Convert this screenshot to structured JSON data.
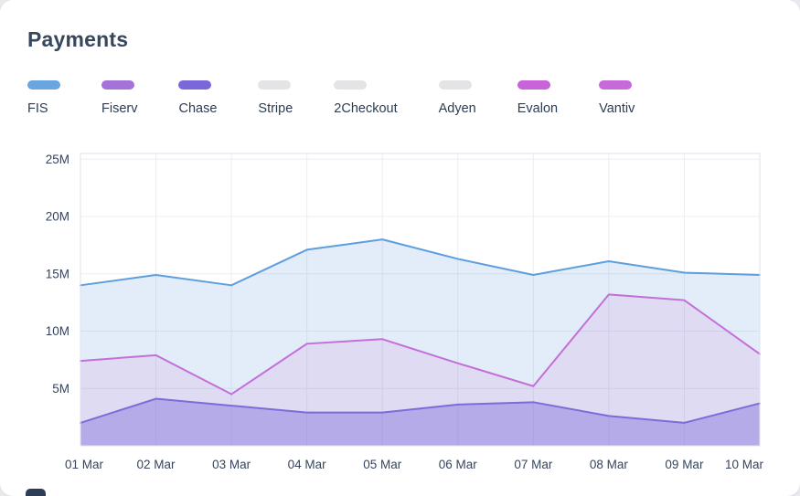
{
  "page": {
    "title": "Payments"
  },
  "legend": {
    "items": [
      {
        "label": "FIS",
        "color": "#6aa5e0",
        "active": true
      },
      {
        "label": "Fiserv",
        "color": "#a472d9",
        "active": true
      },
      {
        "label": "Chase",
        "color": "#7a68da",
        "active": true
      },
      {
        "label": "Stripe",
        "color": "#e4e4e7",
        "active": false
      },
      {
        "label": "2Checkout",
        "color": "#e4e4e7",
        "active": false
      },
      {
        "label": "Adyen",
        "color": "#e4e4e7",
        "active": false
      },
      {
        "label": "Evalon",
        "color": "#c863da",
        "active": true
      },
      {
        "label": "Vantiv",
        "color": "#c76ad9",
        "active": true
      }
    ]
  },
  "chart_data": {
    "type": "area",
    "title": "Payments",
    "unit": "M",
    "x": [
      "01 Mar",
      "02 Mar",
      "03 Mar",
      "04 Mar",
      "05 Mar",
      "06 Mar",
      "07 Mar",
      "08 Mar",
      "09 Mar",
      "10 Mar"
    ],
    "series": [
      {
        "name": "FIS",
        "line_color": "#5f9edc",
        "fill_color": "rgba(110,165,224,0.20)",
        "values": [
          14.0,
          14.9,
          14.0,
          17.1,
          18.0,
          16.3,
          14.9,
          16.1,
          15.1,
          14.9
        ]
      },
      {
        "name": "Evalon",
        "line_color": "#c46fd8",
        "fill_color": "rgba(196,111,216,0.14)",
        "values": [
          7.4,
          7.9,
          4.5,
          8.9,
          9.3,
          7.2,
          5.2,
          13.2,
          12.7,
          8.0
        ]
      },
      {
        "name": "Chase",
        "line_color": "#7d6bd9",
        "fill_color": "rgba(125,105,217,0.42)",
        "values": [
          2.0,
          4.1,
          3.5,
          2.9,
          2.9,
          3.6,
          3.8,
          2.6,
          2.0,
          3.7
        ]
      }
    ],
    "y_ticks": [
      {
        "value": 5,
        "label": "5M"
      },
      {
        "value": 10,
        "label": "10M"
      },
      {
        "value": 15,
        "label": "15M"
      },
      {
        "value": 20,
        "label": "20M"
      },
      {
        "value": 25,
        "label": "25M"
      }
    ],
    "ylim": [
      0,
      25.5
    ],
    "grid": true,
    "legend_position": "top",
    "grid_color": "#ececf2",
    "border_color": "#e2e2ea",
    "tick_text_color": "#35445c"
  }
}
